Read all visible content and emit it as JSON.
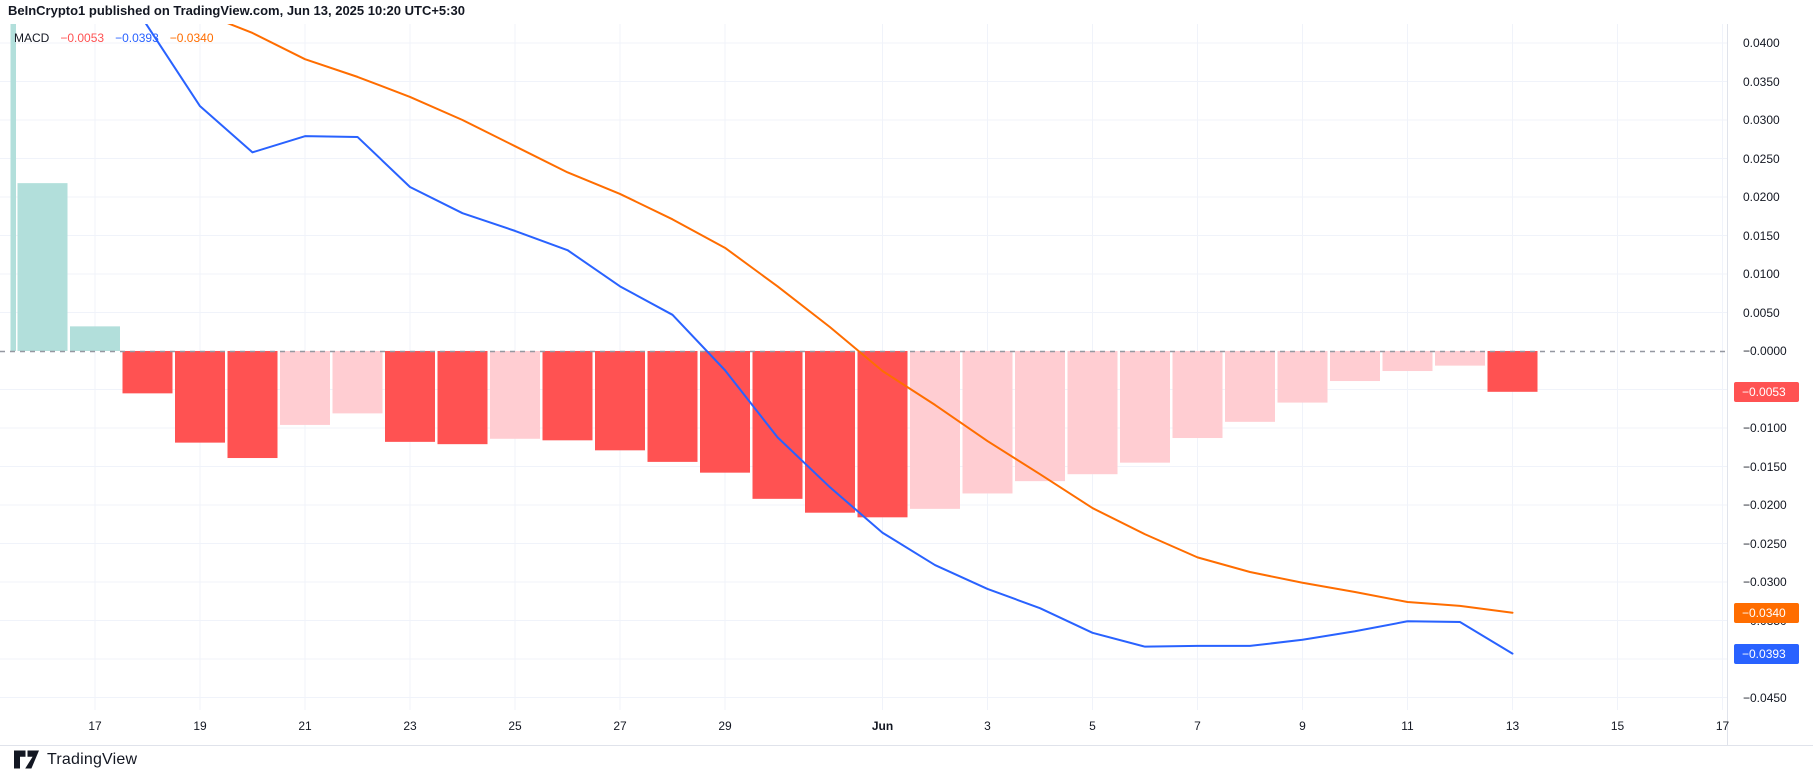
{
  "header": {
    "title": "BeInCrypto1 published on TradingView.com, Jun 13, 2025 10:20 UTC+5:30"
  },
  "legend": {
    "indicator": "MACD",
    "values": [
      {
        "name": "histogram",
        "text": "−0.0053",
        "color_key": "hist_neg_falling"
      },
      {
        "name": "macd",
        "text": "−0.0393",
        "color_key": "macd_line"
      },
      {
        "name": "signal",
        "text": "−0.0340",
        "color_key": "signal_line"
      }
    ]
  },
  "footer": {
    "brand": "TradingView"
  },
  "colors": {
    "background": "#ffffff",
    "grid": "#f0f3fa",
    "axis_border": "#e0e3eb",
    "zero_line": "#9598a1",
    "text": "#131722",
    "hist_positive": "#b2dfdb",
    "hist_neg_falling": "#ff5252",
    "hist_neg_rising": "#ffcdd2",
    "macd_line": "#2962ff",
    "signal_line": "#ff6d00"
  },
  "chart_data": {
    "type": "bar+line",
    "title": "MACD",
    "categories": [
      "May 15",
      "May 16",
      "May 17",
      "May 18",
      "May 19",
      "May 20",
      "May 21",
      "May 22",
      "May 23",
      "May 24",
      "May 25",
      "May 26",
      "May 27",
      "May 28",
      "May 29",
      "May 30",
      "May 31",
      "Jun 1",
      "Jun 2",
      "Jun 3",
      "Jun 4",
      "Jun 5",
      "Jun 6",
      "Jun 7",
      "Jun 8",
      "Jun 9",
      "Jun 10",
      "Jun 11",
      "Jun 12",
      "Jun 13"
    ],
    "series": [
      {
        "name": "histogram",
        "type": "bar",
        "values": [
          null,
          0.0218,
          0.0032,
          -0.0055,
          -0.0119,
          -0.0139,
          -0.0096,
          -0.0081,
          -0.0118,
          -0.0121,
          -0.0114,
          -0.0116,
          -0.0129,
          -0.0144,
          -0.0158,
          -0.0192,
          -0.021,
          -0.0216,
          -0.0205,
          -0.0185,
          -0.0169,
          -0.016,
          -0.0145,
          -0.0113,
          -0.0092,
          -0.0067,
          -0.0039,
          -0.0026,
          -0.0019,
          -0.0053
        ],
        "colors": [
          "teal",
          "teal",
          "teal",
          "red",
          "red",
          "red",
          "pink",
          "pink",
          "red",
          "red",
          "pink",
          "red",
          "red",
          "red",
          "red",
          "red",
          "red",
          "red",
          "pink",
          "pink",
          "pink",
          "pink",
          "pink",
          "pink",
          "pink",
          "pink",
          "pink",
          "pink",
          "pink",
          "red"
        ],
        "clipped_bar": {
          "category": "May 15",
          "note": "bar clipped at top of pane",
          "x": 10.5,
          "width": 5.5
        }
      },
      {
        "name": "macd",
        "type": "line",
        "color_key": "macd_line",
        "values": [
          null,
          null,
          0.0526,
          0.0422,
          0.0318,
          0.0258,
          0.0279,
          0.0278,
          0.0213,
          0.0179,
          0.0156,
          0.0131,
          0.0084,
          0.0047,
          -0.0025,
          -0.0112,
          -0.0177,
          -0.0236,
          -0.0278,
          -0.0309,
          -0.0334,
          -0.0366,
          -0.0384,
          -0.0383,
          -0.0383,
          -0.0375,
          -0.0364,
          -0.0351,
          -0.0352,
          -0.0393
        ]
      },
      {
        "name": "signal",
        "type": "line",
        "color_key": "signal_line",
        "values": [
          null,
          null,
          null,
          null,
          0.044,
          0.0413,
          0.0379,
          0.0356,
          0.033,
          0.03,
          0.0266,
          0.0232,
          0.0204,
          0.0171,
          0.0134,
          0.0084,
          0.0031,
          -0.0026,
          -0.007,
          -0.0117,
          -0.016,
          -0.0204,
          -0.0238,
          -0.0268,
          -0.0287,
          -0.0301,
          -0.0313,
          -0.0326,
          -0.0331,
          -0.034
        ]
      }
    ],
    "y_axis": {
      "range": [
        -0.0466,
        0.0425
      ],
      "grid_values": [
        0.04,
        0.035,
        0.03,
        0.025,
        0.02,
        0.015,
        0.01,
        0.005,
        -0.005,
        -0.01,
        -0.015,
        -0.02,
        -0.025,
        -0.03,
        -0.035,
        -0.04,
        -0.045
      ],
      "ticks": [
        {
          "label": "0.0400",
          "value": 0.04
        },
        {
          "label": "0.0350",
          "value": 0.035
        },
        {
          "label": "0.0300",
          "value": 0.03
        },
        {
          "label": "0.0250",
          "value": 0.025
        },
        {
          "label": "0.0200",
          "value": 0.02
        },
        {
          "label": "0.0150",
          "value": 0.015
        },
        {
          "label": "0.0100",
          "value": 0.01
        },
        {
          "label": "0.0050",
          "value": 0.005
        },
        {
          "label": "−0.0000",
          "value": 0.0
        },
        {
          "label": "−0.0100",
          "value": -0.01
        },
        {
          "label": "−0.0150",
          "value": -0.015
        },
        {
          "label": "−0.0200",
          "value": -0.02
        },
        {
          "label": "−0.0250",
          "value": -0.025
        },
        {
          "label": "−0.0300",
          "value": -0.03
        },
        {
          "label": "−0.0350",
          "value": -0.035
        },
        {
          "label": "−0.0450",
          "value": -0.045
        }
      ]
    },
    "x_axis": {
      "ticks": [
        {
          "label": "17",
          "index": 2
        },
        {
          "label": "19",
          "index": 4
        },
        {
          "label": "21",
          "index": 6
        },
        {
          "label": "23",
          "index": 8
        },
        {
          "label": "25",
          "index": 10
        },
        {
          "label": "27",
          "index": 12
        },
        {
          "label": "29",
          "index": 14
        },
        {
          "label": "Jun",
          "index": 17,
          "bold": true
        },
        {
          "label": "3",
          "index": 19
        },
        {
          "label": "5",
          "index": 21
        },
        {
          "label": "7",
          "index": 23
        },
        {
          "label": "9",
          "index": 25
        },
        {
          "label": "11",
          "index": 27
        },
        {
          "label": "13",
          "index": 29
        },
        {
          "label": "15",
          "index": 31
        },
        {
          "label": "17",
          "index": 33
        }
      ]
    },
    "badges": [
      {
        "name": "histogram",
        "label": "−0.0053",
        "value": -0.0053,
        "color_key": "hist_neg_falling"
      },
      {
        "name": "signal",
        "label": "−0.0340",
        "value": -0.034,
        "color_key": "signal_line"
      },
      {
        "name": "macd",
        "label": "−0.0393",
        "value": -0.0393,
        "color_key": "macd_line"
      }
    ],
    "legend_position": "top-left",
    "grid": true
  }
}
